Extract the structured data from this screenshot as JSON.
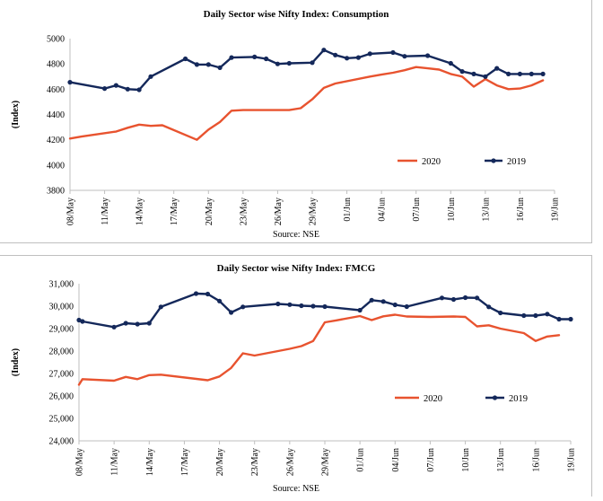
{
  "chart_data": [
    {
      "type": "line",
      "title": "Daily Sector wise Nifty Index: Consumption",
      "xlabel": "",
      "ylabel": "(Index)",
      "ylim": [
        3800,
        5000
      ],
      "yticks": [
        3800,
        4000,
        4200,
        4400,
        4600,
        4800,
        5000
      ],
      "ytick_labels": [
        "3800",
        "4000",
        "4200",
        "4400",
        "4600",
        "4800",
        "5000"
      ],
      "xlim": [
        0,
        42
      ],
      "xtick_positions": [
        0,
        3,
        6,
        9,
        12,
        15,
        18,
        21,
        24,
        27,
        30,
        33,
        36,
        39,
        42
      ],
      "xtick_labels": [
        "08/May",
        "11/May",
        "14/May",
        "17/May",
        "20/May",
        "23/May",
        "26/May",
        "29/May",
        "01/Jun",
        "04/Jun",
        "07/Jun",
        "10/Jun",
        "13/Jun",
        "16/Jun",
        "19/Jun"
      ],
      "legend_position": "bottom-right",
      "source": "Source: NSE",
      "series": [
        {
          "name": "2020",
          "color": "#e8532f",
          "marker": "none",
          "x": [
            0,
            1,
            4,
            5,
            6,
            7,
            8,
            11,
            12,
            13,
            14,
            15,
            16,
            19,
            20,
            21,
            22,
            23,
            26,
            27,
            28,
            29,
            30,
            31,
            32,
            33,
            34,
            35,
            36,
            37,
            38,
            39,
            40,
            41
          ],
          "y": [
            4210,
            4225,
            4265,
            4295,
            4320,
            4310,
            4315,
            4200,
            4280,
            4340,
            4430,
            4435,
            4435,
            4435,
            4450,
            4520,
            4610,
            4645,
            4700,
            4715,
            4730,
            4750,
            4775,
            4765,
            4755,
            4720,
            4700,
            4620,
            4680,
            4630,
            4600,
            4605,
            4630,
            4670
          ]
        },
        {
          "name": "2019",
          "color": "#14285a",
          "marker": "circle",
          "x": [
            0,
            3,
            4,
            5,
            6,
            7,
            10,
            11,
            12,
            13,
            14,
            16,
            17,
            18,
            19,
            21,
            22,
            23,
            24,
            25,
            26,
            28,
            29,
            31,
            33,
            34,
            35,
            36,
            37,
            38,
            39,
            40,
            41
          ],
          "y": [
            4655,
            4605,
            4630,
            4600,
            4595,
            4700,
            4840,
            4795,
            4795,
            4770,
            4850,
            4855,
            4840,
            4800,
            4805,
            4810,
            4910,
            4870,
            4845,
            4850,
            4880,
            4890,
            4860,
            4865,
            4805,
            4740,
            4720,
            4700,
            4765,
            4720,
            4720,
            4720,
            4720
          ]
        }
      ]
    },
    {
      "type": "line",
      "title": "Daily Sector wise Nifty Index: FMCG",
      "xlabel": "",
      "ylabel": "(Index)",
      "ylim": [
        24000,
        31000
      ],
      "yticks": [
        24000,
        25000,
        26000,
        27000,
        28000,
        29000,
        30000,
        31000
      ],
      "ytick_labels": [
        "24,000",
        "25,000",
        "26,000",
        "27,000",
        "28,000",
        "29,000",
        "30,000",
        "31,000"
      ],
      "xlim": [
        0,
        42
      ],
      "xtick_positions": [
        0,
        3,
        6,
        9,
        12,
        15,
        18,
        21,
        24,
        27,
        30,
        33,
        36,
        39,
        42
      ],
      "xtick_labels": [
        "08/May",
        "11/May",
        "14/May",
        "17/May",
        "20/May",
        "23/May",
        "26/May",
        "29/May",
        "01/Jun",
        "04/Jun",
        "07/Jun",
        "10/Jun",
        "13/Jun",
        "16/Jun",
        "19/Jun"
      ],
      "legend_position": "bottom-right",
      "source": "Source: NSE",
      "series": [
        {
          "name": "2020",
          "color": "#e8532f",
          "marker": "none",
          "x": [
            0,
            0.3,
            3,
            4,
            5,
            6,
            7,
            11,
            12,
            13,
            14,
            15,
            18,
            19,
            20,
            21,
            22,
            24,
            25,
            26,
            27,
            28,
            30,
            32,
            33,
            34,
            35,
            36,
            38,
            39,
            40,
            41
          ],
          "y": [
            26500,
            26750,
            26680,
            26850,
            26750,
            26930,
            26950,
            26700,
            26870,
            27250,
            27900,
            27800,
            28100,
            28220,
            28450,
            29280,
            29370,
            29560,
            29380,
            29550,
            29620,
            29540,
            29520,
            29540,
            29520,
            29100,
            29150,
            29000,
            28800,
            28450,
            28650,
            28710
          ]
        },
        {
          "name": "2019",
          "color": "#14285a",
          "marker": "circle",
          "x": [
            0,
            0.3,
            3,
            4,
            5,
            6,
            7,
            10,
            11,
            12,
            13,
            14,
            17,
            18,
            19,
            20,
            21,
            24,
            25,
            26,
            27,
            28,
            31,
            32,
            33,
            34,
            35,
            36,
            38,
            39,
            40,
            41,
            42
          ],
          "y": [
            29380,
            29320,
            29070,
            29240,
            29200,
            29240,
            29970,
            30560,
            30540,
            30230,
            29720,
            29970,
            30100,
            30070,
            30020,
            30000,
            29980,
            29820,
            30270,
            30210,
            30060,
            29980,
            30370,
            30300,
            30380,
            30370,
            29970,
            29700,
            29580,
            29580,
            29650,
            29420,
            29420
          ]
        }
      ]
    }
  ]
}
